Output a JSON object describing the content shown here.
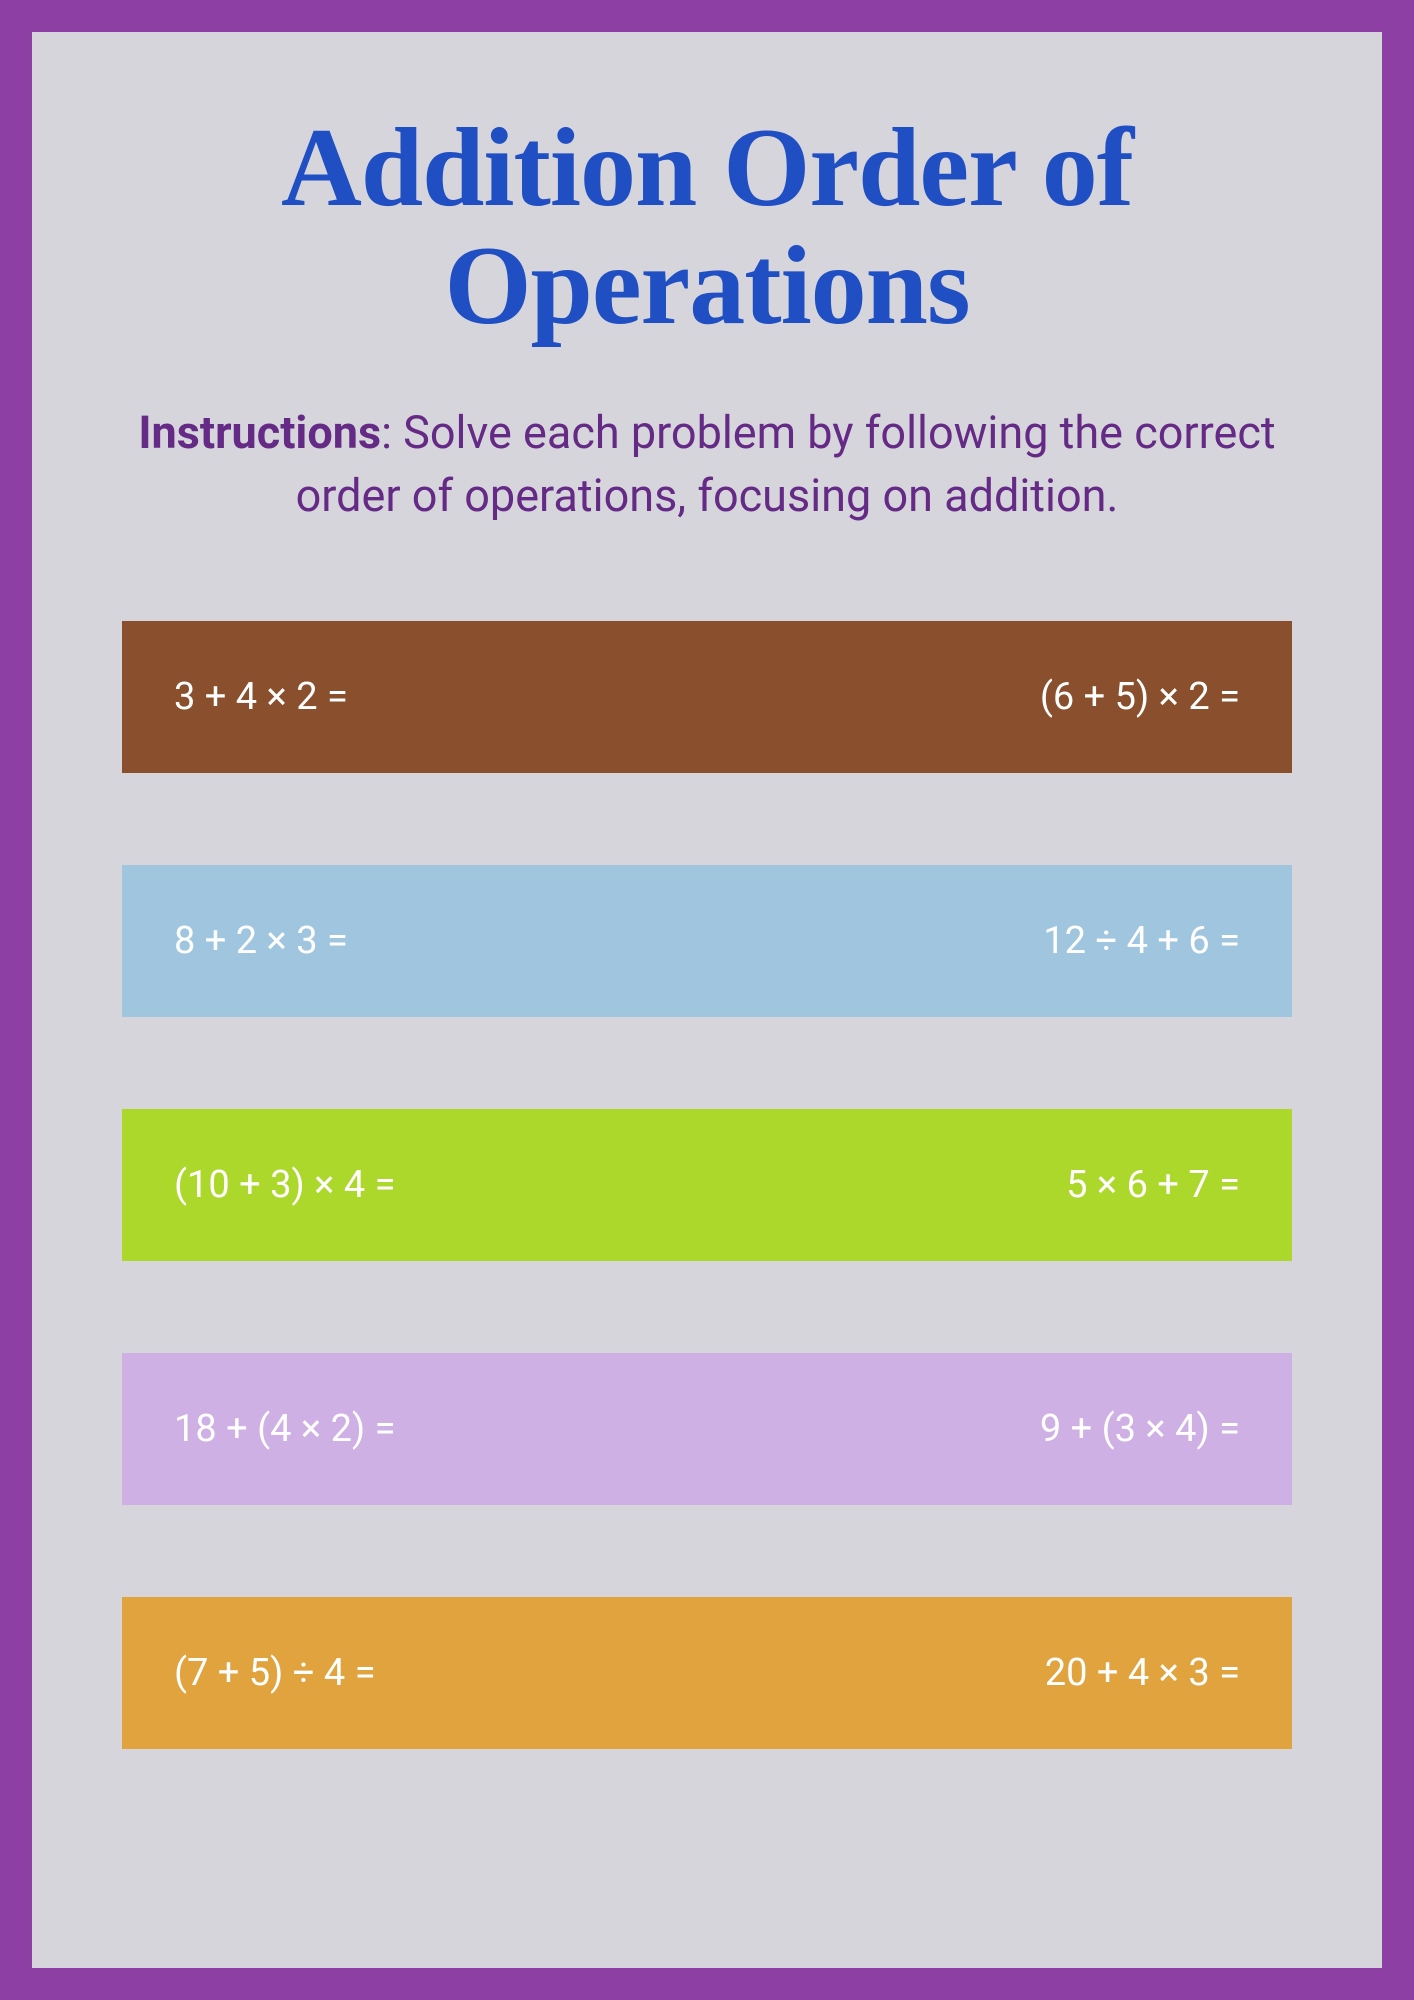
{
  "title": "Addition Order of Operations",
  "instructions_label": "Instructions",
  "instructions_text": ": Solve each problem by following the correct order of operations, focusing on addition.",
  "border_color": "#8d3fa3",
  "background_color": "#d6d5dc",
  "title_color": "#1f4fc2",
  "instructions_color": "#652a85",
  "rows": [
    {
      "left": "3 + 4 × 2 =",
      "right": "(6 + 5) × 2 =",
      "bg": "#8a4f2c"
    },
    {
      "left": "8 + 2 × 3 =",
      "right": "12 ÷ 4 + 6 =",
      "bg": "#a0c6df"
    },
    {
      "left": "(10 + 3) × 4 =",
      "right": "5 × 6 + 7 =",
      "bg": "#abd82a"
    },
    {
      "left": "18 + (4 × 2) =",
      "right": "9 + (3 × 4) =",
      "bg": "#cfb0e4"
    },
    {
      "left": "(7 + 5) ÷ 4 =",
      "right": "20 + 4 × 3 =",
      "bg": "#e0a33d"
    }
  ],
  "row_text_color": "#ffffff",
  "title_fontsize": 112,
  "instructions_fontsize": 45,
  "row_fontsize": 38
}
